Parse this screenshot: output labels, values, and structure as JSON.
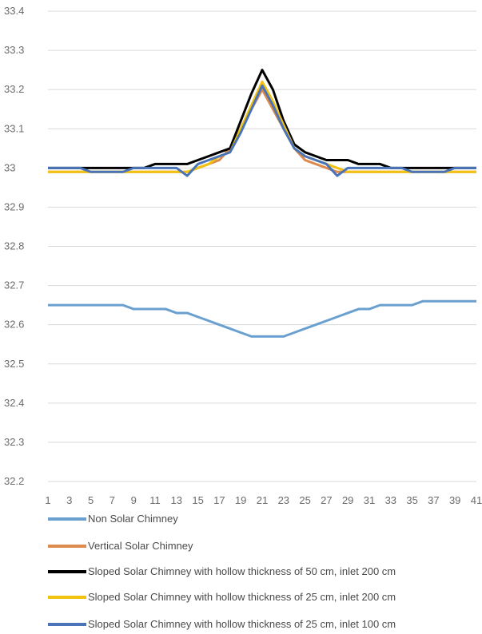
{
  "chart_data": {
    "type": "line",
    "title": "",
    "xlabel": "",
    "ylabel": "",
    "ylim": [
      32.2,
      33.4
    ],
    "ytick_step": 0.1,
    "grid": true,
    "legend_position": "bottom",
    "x": [
      1,
      2,
      3,
      4,
      5,
      6,
      7,
      8,
      9,
      10,
      11,
      12,
      13,
      14,
      15,
      16,
      17,
      18,
      19,
      20,
      21,
      22,
      23,
      24,
      25,
      26,
      27,
      28,
      29,
      30,
      31,
      32,
      33,
      34,
      35,
      36,
      37,
      38,
      39,
      40,
      41
    ],
    "x_tick_labels": [
      "1",
      "3",
      "5",
      "7",
      "9",
      "11",
      "13",
      "15",
      "17",
      "19",
      "21",
      "23",
      "25",
      "27",
      "29",
      "31",
      "33",
      "35",
      "37",
      "39",
      "41"
    ],
    "series": [
      {
        "name": "Non Solar Chimney",
        "color": "#6aa0d0",
        "values": [
          32.65,
          32.65,
          32.65,
          32.65,
          32.65,
          32.65,
          32.65,
          32.65,
          32.64,
          32.64,
          32.64,
          32.64,
          32.63,
          32.63,
          32.62,
          32.61,
          32.6,
          32.59,
          32.58,
          32.57,
          32.57,
          32.57,
          32.57,
          32.58,
          32.59,
          32.6,
          32.61,
          32.62,
          32.63,
          32.64,
          32.64,
          32.65,
          32.65,
          32.65,
          32.65,
          32.66,
          32.66,
          32.66,
          32.66,
          32.66,
          32.66
        ]
      },
      {
        "name": "Vertical Solar Chimney",
        "color": "#dd8a4e",
        "values": [
          32.99,
          32.99,
          32.99,
          32.99,
          32.99,
          32.99,
          32.99,
          32.99,
          32.99,
          32.99,
          32.99,
          32.99,
          32.99,
          32.99,
          33.0,
          33.01,
          33.02,
          33.05,
          33.1,
          33.15,
          33.2,
          33.15,
          33.1,
          33.05,
          33.02,
          33.01,
          33.0,
          32.99,
          32.99,
          32.99,
          32.99,
          32.99,
          32.99,
          32.99,
          32.99,
          32.99,
          32.99,
          32.99,
          32.99,
          32.99,
          32.99
        ]
      },
      {
        "name": "Sloped Solar Chimney with hollow thickness of 50 cm, inlet 200 cm",
        "color": "#000000",
        "values": [
          33.0,
          33.0,
          33.0,
          33.0,
          33.0,
          33.0,
          33.0,
          33.0,
          33.0,
          33.0,
          33.01,
          33.01,
          33.01,
          33.01,
          33.02,
          33.03,
          33.04,
          33.05,
          33.12,
          33.19,
          33.25,
          33.2,
          33.12,
          33.06,
          33.04,
          33.03,
          33.02,
          33.02,
          33.02,
          33.01,
          33.01,
          33.01,
          33.0,
          33.0,
          33.0,
          33.0,
          33.0,
          33.0,
          33.0,
          33.0,
          33.0
        ]
      },
      {
        "name": "Sloped Solar Chimney with hollow thickness of 25 cm, inlet 200 cm",
        "color": "#f2c20f",
        "values": [
          32.99,
          32.99,
          32.99,
          32.99,
          32.99,
          32.99,
          32.99,
          32.99,
          32.99,
          32.99,
          32.99,
          32.99,
          32.99,
          32.99,
          33.0,
          33.01,
          33.03,
          33.04,
          33.1,
          33.16,
          33.22,
          33.17,
          33.11,
          33.05,
          33.03,
          33.02,
          33.01,
          33.0,
          32.99,
          32.99,
          32.99,
          32.99,
          32.99,
          32.99,
          32.99,
          32.99,
          32.99,
          32.99,
          32.99,
          32.99,
          32.99
        ]
      },
      {
        "name": "Sloped Solar Chimney with hollow thickness of 25 cm, inlet 100 cm",
        "color": "#4a74b8",
        "values": [
          33.0,
          33.0,
          33.0,
          33.0,
          32.99,
          32.99,
          32.99,
          32.99,
          33.0,
          33.0,
          33.0,
          33.0,
          33.0,
          32.98,
          33.01,
          33.02,
          33.03,
          33.04,
          33.09,
          33.15,
          33.21,
          33.16,
          33.1,
          33.05,
          33.03,
          33.02,
          33.01,
          32.98,
          33.0,
          33.0,
          33.0,
          33.0,
          33.0,
          33.0,
          32.99,
          32.99,
          32.99,
          32.99,
          33.0,
          33.0,
          33.0
        ]
      }
    ]
  }
}
